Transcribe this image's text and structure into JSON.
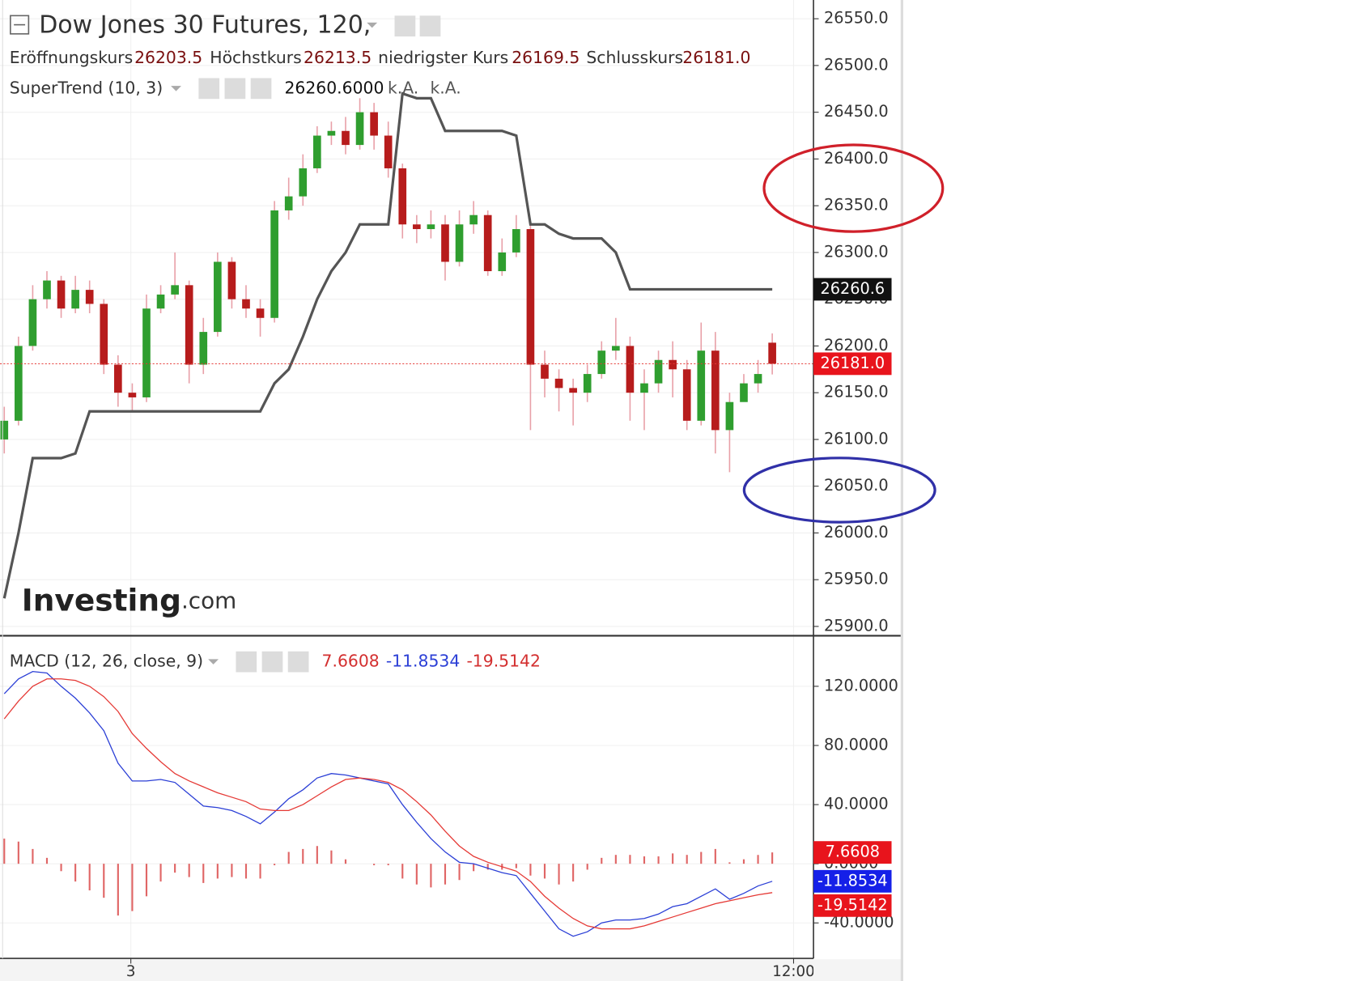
{
  "chart_data": {
    "type": "candlestick",
    "title": "Dow Jones 30 Futures, 120,",
    "ohlc_legend": {
      "names": [
        "Eröffnungskurs",
        "Höchstkurs",
        "niedrigster Kurs",
        "Schlusskurs"
      ],
      "values": [
        26203.5,
        26213.5,
        26169.5,
        26181.0
      ],
      "value_labels": [
        "26203.5",
        "26213.5",
        "26169.5",
        "26181.0"
      ]
    },
    "up_color": "#2f9e2f",
    "down_color": "#b71c1c",
    "wick_color": "#e8a0a8",
    "open": [
      26100,
      26120,
      26200,
      26250,
      26270,
      26240,
      26260,
      26245,
      26180,
      26150,
      26145,
      26240,
      26255,
      26265,
      26180,
      26215,
      26290,
      26250,
      26240,
      26230,
      26345,
      26360,
      26390,
      26425,
      26430,
      26415,
      26450,
      26425,
      26390,
      26330,
      26325,
      26330,
      26290,
      26330,
      26340,
      26280,
      26300,
      26325,
      26180,
      26165,
      26155,
      26150,
      26170,
      26195,
      26200,
      26150,
      26160,
      26185,
      26175,
      26120,
      26195,
      26110,
      26140,
      26160,
      26203.5
    ],
    "high": [
      26135,
      26210,
      26265,
      26280,
      26275,
      26275,
      26270,
      26250,
      26190,
      26160,
      26255,
      26265,
      26300,
      26270,
      26230,
      26300,
      26295,
      26265,
      26250,
      26355,
      26380,
      26405,
      26435,
      26440,
      26445,
      26465,
      26460,
      26440,
      26395,
      26340,
      26345,
      26340,
      26345,
      26355,
      26345,
      26315,
      26340,
      26330,
      26195,
      26175,
      26165,
      26180,
      26205,
      26230,
      26210,
      26175,
      26195,
      26205,
      26185,
      26225,
      26215,
      26150,
      26170,
      26185,
      26213.5
    ],
    "low": [
      26085,
      26115,
      26195,
      26240,
      26230,
      26235,
      26235,
      26170,
      26135,
      26130,
      26140,
      26235,
      26250,
      26160,
      26170,
      26210,
      26240,
      26230,
      26210,
      26225,
      26335,
      26350,
      26385,
      26415,
      26405,
      26410,
      26410,
      26380,
      26315,
      26310,
      26315,
      26270,
      26285,
      26320,
      26275,
      26275,
      26295,
      26110,
      26145,
      26130,
      26115,
      26140,
      26165,
      26185,
      26120,
      26110,
      26150,
      26145,
      26110,
      26115,
      26085,
      26065,
      26145,
      26150,
      26169.5
    ],
    "close": [
      26120,
      26200,
      26250,
      26270,
      26240,
      26260,
      26245,
      26180,
      26150,
      26145,
      26240,
      26255,
      26265,
      26180,
      26215,
      26290,
      26250,
      26240,
      26230,
      26345,
      26360,
      26390,
      26425,
      26430,
      26415,
      26450,
      26425,
      26390,
      26330,
      26325,
      26330,
      26290,
      26330,
      26340,
      26280,
      26300,
      26325,
      26180,
      26165,
      26155,
      26150,
      26170,
      26195,
      26200,
      26150,
      26160,
      26185,
      26175,
      26120,
      26195,
      26110,
      26140,
      26160,
      26170,
      26181.0
    ],
    "xlim": [
      -0.3,
      56.9
    ],
    "xticks": [
      {
        "value": 8.9,
        "label": "3"
      },
      {
        "value": 55.5,
        "label": "12:00"
      }
    ],
    "ylim": [
      25890,
      26570
    ],
    "yticks": [
      {
        "value": 25900,
        "label": "25900.0"
      },
      {
        "value": 25950,
        "label": "25950.0"
      },
      {
        "value": 26000,
        "label": "26000.0"
      },
      {
        "value": 26050,
        "label": "26050.0"
      },
      {
        "value": 26100,
        "label": "26100.0"
      },
      {
        "value": 26150,
        "label": "26150.0"
      },
      {
        "value": 26200,
        "label": "26200.0"
      },
      {
        "value": 26250,
        "label": "26250.0"
      },
      {
        "value": 26300,
        "label": "26300.0"
      },
      {
        "value": 26350,
        "label": "26350.0"
      },
      {
        "value": 26400,
        "label": "26400.0"
      },
      {
        "value": 26450,
        "label": "26450.0"
      },
      {
        "value": 26500,
        "label": "26500.0"
      },
      {
        "value": 26550,
        "label": "26550.0"
      }
    ],
    "grid": true,
    "supertrend": {
      "name": "SuperTrend (10, 3)",
      "color": "#555555",
      "values": [
        25930,
        26000,
        26080,
        26080,
        26080,
        26085,
        26130,
        26130,
        26130,
        26130,
        26130,
        26130,
        26130,
        26130,
        26130,
        26130,
        26130,
        26130,
        26130,
        26160,
        26175,
        26210,
        26250,
        26280,
        26300,
        26330,
        26330,
        26330,
        26470,
        26465,
        26465,
        26430,
        26430,
        26430,
        26430,
        26430,
        26425,
        26330,
        26330,
        26320,
        26315,
        26315,
        26315,
        26300,
        26260.6,
        26260.6,
        26260.6,
        26260.6,
        26260.6,
        26260.6,
        26260.6,
        26260.6,
        26260.6,
        26260.6,
        26260.6
      ],
      "value_label": "26260.6000",
      "axis_label": "26260.6",
      "extra_labels": [
        "k.A.",
        "k.A."
      ]
    },
    "macd": {
      "name": "MACD (12, 26, close, 9)",
      "ylim": [
        -64,
        153
      ],
      "yticks": [
        {
          "value": -40,
          "label": "-40.0000"
        },
        {
          "value": 0,
          "label": "0.0000"
        },
        {
          "value": 40,
          "label": "40.0000"
        },
        {
          "value": 80,
          "label": "80.0000"
        },
        {
          "value": 120,
          "label": "120.0000"
        }
      ],
      "histogram": {
        "color": "#e06666",
        "values": [
          17,
          15,
          10,
          4,
          -5,
          -12,
          -18,
          -23,
          -35,
          -32,
          -22,
          -12,
          -6,
          -9,
          -13,
          -10,
          -9,
          -10,
          -10,
          -1,
          8,
          10,
          12,
          9,
          3,
          0,
          -1,
          -1,
          -10,
          -14,
          -16,
          -14,
          -11,
          -5,
          -4,
          -4,
          -3,
          -8,
          -10,
          -14,
          -12,
          -4,
          4,
          6,
          6,
          5,
          5,
          7,
          6,
          8,
          10,
          1,
          3,
          6,
          7.6608
        ]
      },
      "series": [
        {
          "color": "#2b3fd6",
          "values": [
            115,
            125,
            130,
            129,
            120,
            112,
            102,
            90,
            68,
            56,
            56,
            57,
            55,
            47,
            39,
            38,
            36,
            32,
            27,
            35,
            44,
            50,
            58,
            61,
            60,
            58,
            56,
            54,
            40,
            28,
            17,
            8,
            1,
            0,
            -3,
            -6,
            -8,
            -20,
            -32,
            -44,
            -49,
            -46,
            -40,
            -38,
            -38,
            -37,
            -34,
            -29,
            -27,
            -22,
            -17,
            -24,
            -20,
            -15,
            -11.8534
          ]
        },
        {
          "color": "#e53935",
          "values": [
            98,
            110,
            120,
            125,
            125,
            124,
            120,
            113,
            103,
            88,
            78,
            69,
            61,
            56,
            52,
            48,
            45,
            42,
            37,
            36,
            36,
            40,
            46,
            52,
            57,
            58,
            57,
            55,
            50,
            42,
            33,
            22,
            12,
            5,
            1,
            -2,
            -5,
            -12,
            -22,
            -30,
            -37,
            -42,
            -44,
            -44,
            -44,
            -42,
            -39,
            -36,
            -33,
            -30,
            -27,
            -25,
            -23,
            -21,
            -19.5142
          ]
        }
      ]
    },
    "logo": [
      "Investing",
      ".com"
    ]
  }
}
